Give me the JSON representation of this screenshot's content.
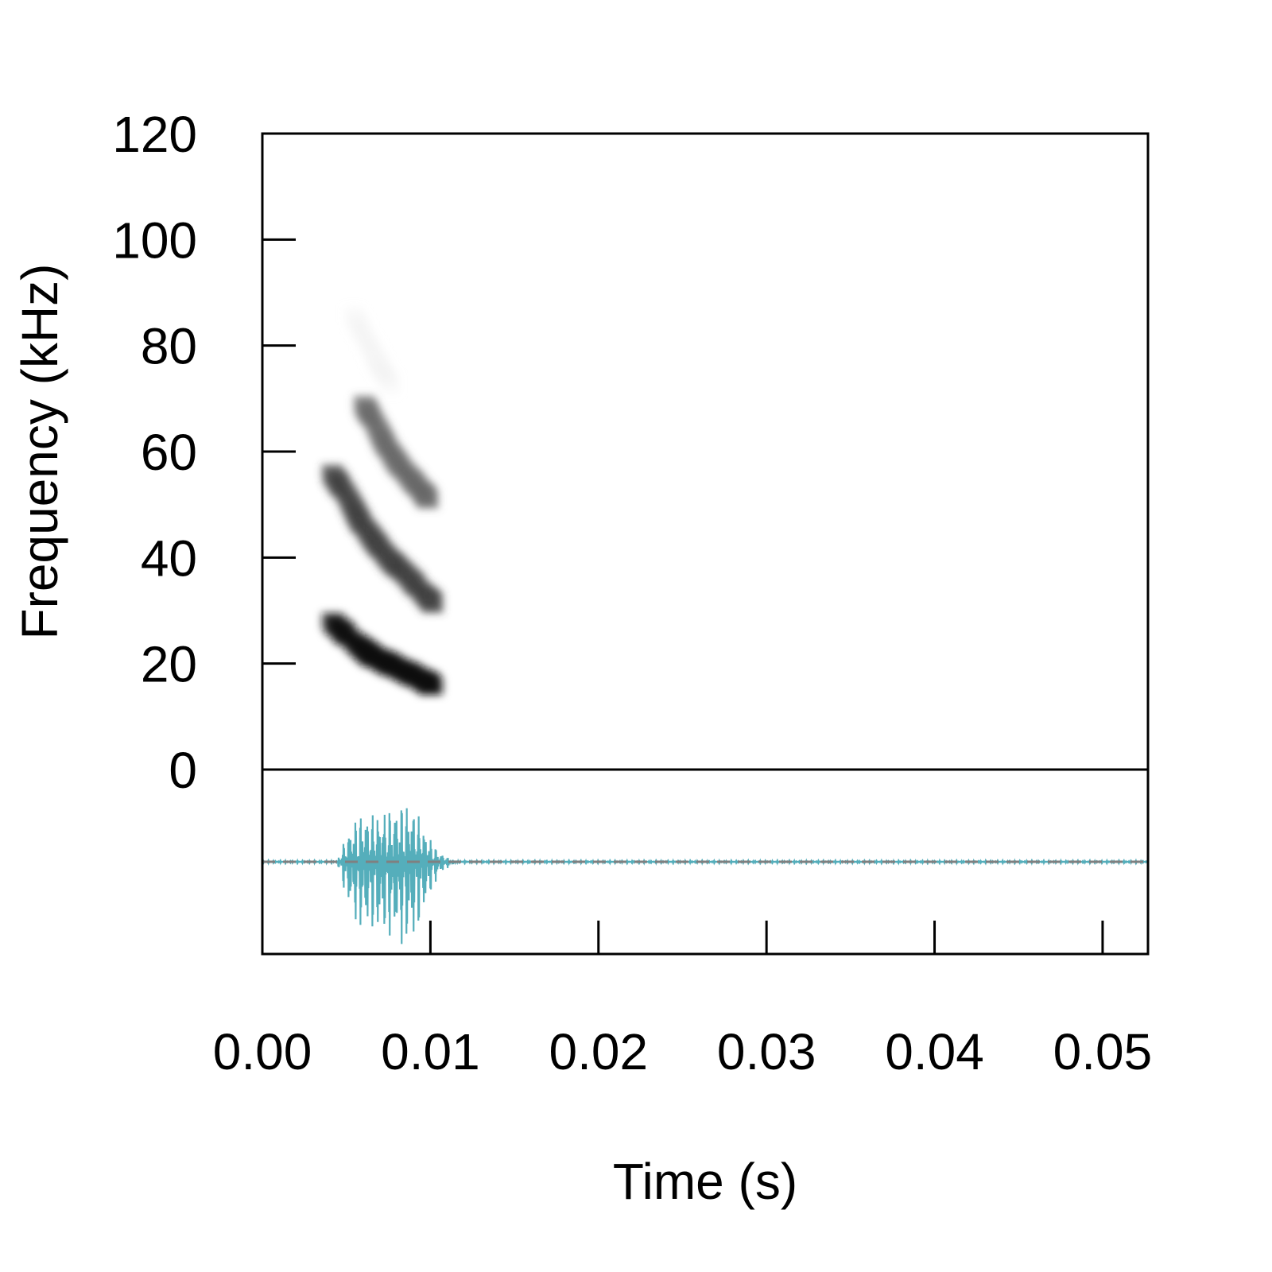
{
  "chart_data": {
    "type": "spectrogram",
    "xlabel": "Time (s)",
    "ylabel": "Frequency (kHz)",
    "xlim": [
      0,
      0.0527
    ],
    "ylim": [
      0,
      120
    ],
    "x_ticks": [
      {
        "value": 0.0,
        "label": "0.00"
      },
      {
        "value": 0.01,
        "label": "0.01"
      },
      {
        "value": 0.02,
        "label": "0.02"
      },
      {
        "value": 0.03,
        "label": "0.03"
      },
      {
        "value": 0.04,
        "label": "0.04"
      },
      {
        "value": 0.05,
        "label": "0.05"
      }
    ],
    "y_ticks": [
      {
        "value": 0,
        "label": "0"
      },
      {
        "value": 20,
        "label": "20"
      },
      {
        "value": 40,
        "label": "40"
      },
      {
        "value": 60,
        "label": "60"
      },
      {
        "value": 80,
        "label": "80"
      },
      {
        "value": 100,
        "label": "100"
      },
      {
        "value": 120,
        "label": "120"
      }
    ],
    "harmonics": [
      {
        "name": "fundamental",
        "t": [
          0.0041,
          0.0055,
          0.0065,
          0.0075,
          0.0085,
          0.0095,
          0.0103
        ],
        "f": [
          28,
          24,
          21.5,
          20,
          18.5,
          17,
          15.5
        ],
        "intensity": 0.95
      },
      {
        "name": "second",
        "t": [
          0.0041,
          0.005,
          0.0058,
          0.0067,
          0.0076,
          0.0085,
          0.0095,
          0.0103
        ],
        "f": [
          56,
          52,
          47,
          43,
          39.5,
          37,
          33.5,
          31
        ],
        "intensity": 0.75
      },
      {
        "name": "third",
        "t": [
          0.006,
          0.0066,
          0.0073,
          0.008,
          0.0088,
          0.0095,
          0.01
        ],
        "f": [
          69,
          66,
          61.5,
          58,
          55,
          52.5,
          50.5
        ],
        "intensity": 0.6
      },
      {
        "name": "faint",
        "t": [
          0.0054,
          0.0062,
          0.007,
          0.0078
        ],
        "f": [
          86,
          81,
          76,
          72
        ],
        "intensity": 0.12
      }
    ],
    "waveform": {
      "color": "#55aebb",
      "baseline_color": "#808080",
      "envelope": [
        {
          "t": 0.0045,
          "amp": 0.05
        },
        {
          "t": 0.005,
          "amp": 0.4
        },
        {
          "t": 0.0055,
          "amp": 0.65
        },
        {
          "t": 0.006,
          "amp": 0.75
        },
        {
          "t": 0.0065,
          "amp": 0.72
        },
        {
          "t": 0.007,
          "amp": 0.78
        },
        {
          "t": 0.0075,
          "amp": 0.8
        },
        {
          "t": 0.008,
          "amp": 0.85
        },
        {
          "t": 0.0085,
          "amp": 0.92
        },
        {
          "t": 0.009,
          "amp": 0.85
        },
        {
          "t": 0.0095,
          "amp": 0.6
        },
        {
          "t": 0.01,
          "amp": 0.35
        },
        {
          "t": 0.0105,
          "amp": 0.15
        },
        {
          "t": 0.0112,
          "amp": 0.04
        },
        {
          "t": 0.012,
          "amp": 0.01
        }
      ]
    }
  }
}
